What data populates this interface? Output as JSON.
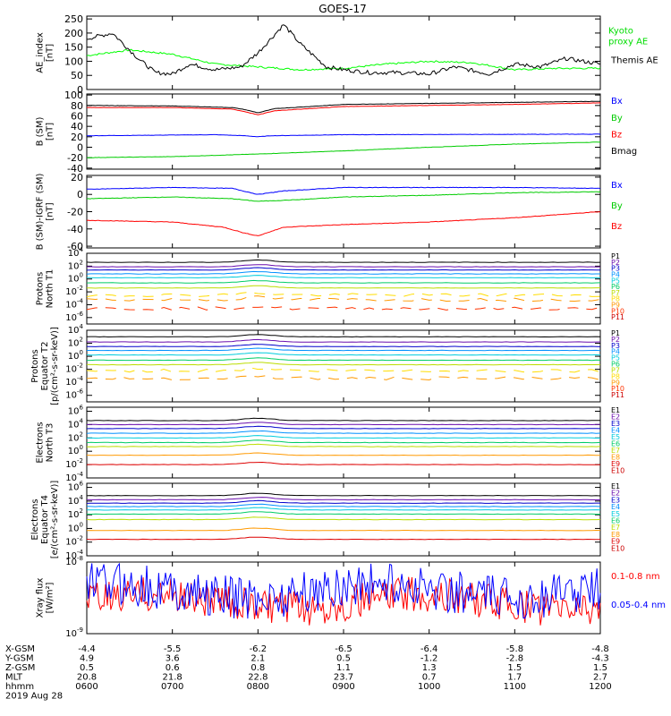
{
  "title": "GOES-17",
  "chart_data": [
    {
      "type": "line",
      "ylabel": [
        "AE_index",
        "[nT]"
      ],
      "yticks": [
        "250",
        "200",
        "150",
        "100",
        "50",
        "0"
      ],
      "tick_values": [
        250,
        200,
        150,
        100,
        50,
        0
      ],
      "ylim": [
        0,
        260
      ],
      "series": [
        {
          "name": "Kyoto proxy AE",
          "label": [
            "Kyoto",
            "proxy AE"
          ],
          "color": "#00ff00",
          "x": [
            0,
            0.5,
            1,
            1.5,
            2,
            2.5,
            3,
            3.5,
            4,
            4.5,
            5,
            5.5,
            6
          ],
          "y": [
            120,
            140,
            125,
            90,
            80,
            70,
            75,
            90,
            100,
            95,
            70,
            75,
            75
          ]
        },
        {
          "name": "Themis AE",
          "label": [
            "Themis AE"
          ],
          "color": "#000000",
          "x": [
            0,
            0.3,
            0.6,
            0.8,
            1,
            1.2,
            1.5,
            1.8,
            2,
            2.3,
            2.5,
            2.8,
            3,
            3.3,
            3.6,
            4,
            4.3,
            4.7,
            5,
            5.3,
            5.6,
            6
          ],
          "y": [
            180,
            200,
            110,
            60,
            55,
            90,
            70,
            80,
            130,
            230,
            160,
            80,
            70,
            60,
            60,
            55,
            80,
            55,
            90,
            80,
            110,
            90
          ]
        }
      ]
    },
    {
      "type": "line",
      "ylabel": [
        "B (SM)",
        "[nT]"
      ],
      "yticks": [
        "100",
        "80",
        "60",
        "40",
        "20",
        "0",
        "-20",
        "-40"
      ],
      "tick_values": [
        100,
        80,
        60,
        40,
        20,
        0,
        -20,
        -40
      ],
      "ylim": [
        -42,
        102
      ],
      "series": [
        {
          "name": "Bx",
          "label": [
            "Bx"
          ],
          "color": "#0000ff",
          "x": [
            0,
            1.5,
            1.85,
            2,
            2.15,
            3,
            6
          ],
          "y": [
            22,
            24,
            22,
            20,
            22,
            24,
            25
          ]
        },
        {
          "name": "By",
          "label": [
            "By"
          ],
          "color": "#00cc00",
          "x": [
            0,
            1,
            2,
            3,
            4,
            5,
            6
          ],
          "y": [
            -20,
            -18,
            -13,
            -7,
            0,
            6,
            10
          ]
        },
        {
          "name": "Bz",
          "label": [
            "Bz"
          ],
          "color": "#ff0000",
          "x": [
            0,
            1,
            1.7,
            1.85,
            2,
            2.2,
            3,
            4,
            5,
            6
          ],
          "y": [
            76,
            76,
            73,
            68,
            62,
            70,
            78,
            80,
            82,
            85
          ]
        },
        {
          "name": "Bmag",
          "label": [
            "Bmag"
          ],
          "color": "#000000",
          "x": [
            0,
            1,
            1.7,
            1.85,
            2,
            2.2,
            3,
            4,
            5,
            6
          ],
          "y": [
            80,
            79,
            76,
            72,
            66,
            74,
            82,
            84,
            86,
            88
          ]
        }
      ]
    },
    {
      "type": "line",
      "ylabel": [
        "B (SM)-IGRF (SM)",
        "[nT]"
      ],
      "yticks": [
        "20",
        "0",
        "-20",
        "-40",
        "-60"
      ],
      "tick_values": [
        20,
        0,
        -20,
        -40,
        -60
      ],
      "ylim": [
        -62,
        22
      ],
      "series": [
        {
          "name": "Bx",
          "label": [
            "Bx"
          ],
          "color": "#0000ff",
          "x": [
            0,
            1,
            1.7,
            2,
            2.3,
            3,
            4,
            5,
            6
          ],
          "y": [
            6,
            8,
            7,
            0,
            4,
            8,
            8,
            8,
            7
          ]
        },
        {
          "name": "By",
          "label": [
            "By"
          ],
          "color": "#00cc00",
          "x": [
            0,
            1,
            1.7,
            2,
            2.5,
            3,
            4,
            5,
            6
          ],
          "y": [
            -5,
            -3,
            -5,
            -8,
            -6,
            -3,
            -1,
            2,
            3
          ]
        },
        {
          "name": "Bz",
          "label": [
            "Bz"
          ],
          "color": "#ff0000",
          "x": [
            0,
            1,
            1.6,
            1.85,
            2,
            2.3,
            3,
            4,
            5,
            6
          ],
          "y": [
            -30,
            -32,
            -38,
            -45,
            -48,
            -38,
            -35,
            -32,
            -27,
            -20
          ]
        }
      ]
    },
    {
      "type": "line",
      "ylabel": [
        "Protons",
        "North T1"
      ],
      "ylog": true,
      "yticks_exp": [
        4,
        2,
        0,
        -2,
        -4,
        -6
      ],
      "ylim_log": [
        -7,
        4
      ],
      "series": [
        {
          "name": "P1",
          "label": [
            "P1"
          ],
          "color": "#000000",
          "levels": [
            2.6
          ]
        },
        {
          "name": "P2",
          "label": [
            "P2"
          ],
          "color": "#6a0dad",
          "levels": [
            1.9
          ]
        },
        {
          "name": "P3",
          "label": [
            "P3"
          ],
          "color": "#0000cc",
          "levels": [
            1.4
          ]
        },
        {
          "name": "P4",
          "label": [
            "P4"
          ],
          "color": "#0090ff",
          "levels": [
            0.8
          ]
        },
        {
          "name": "P5",
          "label": [
            "P5"
          ],
          "color": "#00ccdd",
          "levels": [
            0.2
          ]
        },
        {
          "name": "P6",
          "label": [
            "P6"
          ],
          "color": "#00cc66",
          "levels": [
            -0.6
          ]
        },
        {
          "name": "P7",
          "label": [
            "P7"
          ],
          "color": "#bbdd00",
          "levels": [
            -1.4
          ]
        },
        {
          "name": "P8",
          "label": [
            "P8"
          ],
          "color": "#ffdd00",
          "levels": [
            -2.5
          ]
        },
        {
          "name": "P9",
          "label": [
            "P9"
          ],
          "color": "#ff9900",
          "levels": [
            -3.2
          ]
        },
        {
          "name": "P10",
          "label": [
            "P10"
          ],
          "color": "#ff3300",
          "levels": [
            -4.6
          ]
        },
        {
          "name": "P11",
          "label": [
            "P11"
          ],
          "color": "#cc0000",
          "levels": []
        }
      ]
    },
    {
      "type": "line",
      "ylabel": [
        "Protons",
        "Equator T2",
        "[p/(cm²-s-sr-keV)]"
      ],
      "ylog": true,
      "yticks_exp": [
        4,
        2,
        0,
        -2,
        -4,
        -6
      ],
      "ylim_log": [
        -7,
        4
      ],
      "series": [
        {
          "name": "P1",
          "label": [
            "P1"
          ],
          "color": "#000000",
          "levels": [
            3.0
          ]
        },
        {
          "name": "P2",
          "label": [
            "P2"
          ],
          "color": "#6a0dad",
          "levels": [
            2.2
          ]
        },
        {
          "name": "P3",
          "label": [
            "P3"
          ],
          "color": "#0000cc",
          "levels": [
            1.5
          ]
        },
        {
          "name": "P4",
          "label": [
            "P4"
          ],
          "color": "#0090ff",
          "levels": [
            0.9
          ]
        },
        {
          "name": "P5",
          "label": [
            "P5"
          ],
          "color": "#00ccdd",
          "levels": [
            0.2
          ]
        },
        {
          "name": "P6",
          "label": [
            "P6"
          ],
          "color": "#00cc66",
          "levels": [
            -0.6
          ]
        },
        {
          "name": "P7",
          "label": [
            "P7"
          ],
          "color": "#bbdd00",
          "levels": [
            -1.3
          ]
        },
        {
          "name": "P8",
          "label": [
            "P8"
          ],
          "color": "#ffdd00",
          "levels": [
            -2.2
          ]
        },
        {
          "name": "P9",
          "label": [
            "P9"
          ],
          "color": "#ff9900",
          "levels": [
            -3.4
          ]
        },
        {
          "name": "P10",
          "label": [
            "P10"
          ],
          "color": "#ff3300",
          "levels": []
        },
        {
          "name": "P11",
          "label": [
            "P11"
          ],
          "color": "#cc0000",
          "levels": []
        }
      ]
    },
    {
      "type": "line",
      "ylabel": [
        "Electrons",
        "North T3"
      ],
      "ylog": true,
      "yticks_exp": [
        6,
        4,
        2,
        0,
        -2,
        -4
      ],
      "ylim_log": [
        -4,
        6.6
      ],
      "series": [
        {
          "name": "E1",
          "label": [
            "E1"
          ],
          "color": "#000000",
          "levels": [
            4.6
          ]
        },
        {
          "name": "E2",
          "label": [
            "E2"
          ],
          "color": "#6a0dad",
          "levels": [
            4.0
          ]
        },
        {
          "name": "E3",
          "label": [
            "E3"
          ],
          "color": "#0000cc",
          "levels": [
            3.4
          ]
        },
        {
          "name": "E4",
          "label": [
            "E4"
          ],
          "color": "#0090ff",
          "levels": [
            2.7
          ]
        },
        {
          "name": "E5",
          "label": [
            "E5"
          ],
          "color": "#00ccdd",
          "levels": [
            2.0
          ]
        },
        {
          "name": "E6",
          "label": [
            "E6"
          ],
          "color": "#00cc66",
          "levels": [
            1.3
          ]
        },
        {
          "name": "E7",
          "label": [
            "E7"
          ],
          "color": "#bbdd00",
          "levels": [
            0.7
          ]
        },
        {
          "name": "E8",
          "label": [
            "E8"
          ],
          "color": "#ff9900",
          "levels": [
            -0.6
          ]
        },
        {
          "name": "E9",
          "label": [
            "E9"
          ],
          "color": "#dd0000",
          "levels": [
            -2.0
          ]
        },
        {
          "name": "E10",
          "label": [
            "E10"
          ],
          "color": "#cc0000",
          "levels": []
        }
      ]
    },
    {
      "type": "line",
      "ylabel": [
        "Electrons",
        "Equator T4",
        "[e/(cm²-s-sr-keV)]"
      ],
      "ylog": true,
      "yticks_exp": [
        6,
        4,
        2,
        0,
        -2,
        -4
      ],
      "ylim_log": [
        -4,
        6.6
      ],
      "series": [
        {
          "name": "E1",
          "label": [
            "E1"
          ],
          "color": "#000000",
          "levels": [
            4.8
          ]
        },
        {
          "name": "E2",
          "label": [
            "E2"
          ],
          "color": "#6a0dad",
          "levels": [
            4.2
          ]
        },
        {
          "name": "E3",
          "label": [
            "E3"
          ],
          "color": "#0000cc",
          "levels": [
            3.7
          ]
        },
        {
          "name": "E4",
          "label": [
            "E4"
          ],
          "color": "#0090ff",
          "levels": [
            3.2
          ]
        },
        {
          "name": "E5",
          "label": [
            "E5"
          ],
          "color": "#00ccdd",
          "levels": [
            2.7
          ]
        },
        {
          "name": "E6",
          "label": [
            "E6"
          ],
          "color": "#00cc66",
          "levels": [
            2.1
          ]
        },
        {
          "name": "E7",
          "label": [
            "E7"
          ],
          "color": "#bbdd00",
          "levels": [
            1.3
          ]
        },
        {
          "name": "E8",
          "label": [
            "E8"
          ],
          "color": "#ff9900",
          "levels": [
            -0.3
          ]
        },
        {
          "name": "E9",
          "label": [
            "E9"
          ],
          "color": "#dd0000",
          "levels": [
            -1.6
          ]
        },
        {
          "name": "E10",
          "label": [
            "E10"
          ],
          "color": "#cc0000",
          "levels": []
        }
      ]
    },
    {
      "type": "line",
      "ylabel": [
        "Xray flux",
        "[W/m²]"
      ],
      "ylog": true,
      "yticks_exp": [
        -8,
        -9
      ],
      "ylim_log": [
        -9,
        -8
      ],
      "series": [
        {
          "name": "0.1-0.8 nm",
          "label": [
            "0.1-0.8 nm"
          ],
          "color": "#ff0000",
          "center": -8.55,
          "amp": 0.25
        },
        {
          "name": "0.05-0.4 nm",
          "label": [
            "0.05-0.4 nm"
          ],
          "color": "#0000ff",
          "center": -8.4,
          "amp": 0.3
        }
      ]
    }
  ],
  "x_axis": {
    "rows": [
      {
        "label": "X-GSM",
        "values": [
          "-4.4",
          "-5.5",
          "-6.2",
          "-6.5",
          "-6.4",
          "-5.8",
          "-4.8"
        ]
      },
      {
        "label": "Y-GSM",
        "values": [
          "4.9",
          "3.6",
          "2.1",
          "0.5",
          "-1.2",
          "-2.8",
          "-4.3"
        ]
      },
      {
        "label": "Z-GSM",
        "values": [
          "0.5",
          "0.6",
          "0.8",
          "1.1",
          "1.3",
          "1.5",
          "1.5"
        ]
      },
      {
        "label": "MLT",
        "values": [
          "20.8",
          "21.8",
          "22.8",
          "23.7",
          "0.7",
          "1.7",
          "2.7"
        ]
      },
      {
        "label": "hhmm",
        "values": [
          "0600",
          "0700",
          "0800",
          "0900",
          "1000",
          "1100",
          "1200"
        ]
      }
    ],
    "date": "2019 Aug 28",
    "xlim": [
      0,
      6
    ]
  }
}
